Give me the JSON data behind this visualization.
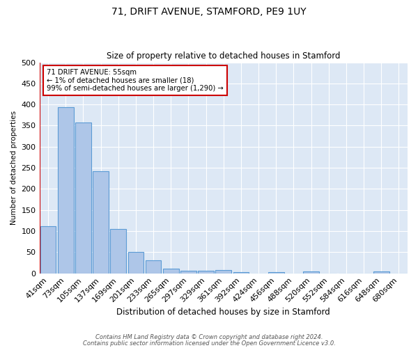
{
  "title1": "71, DRIFT AVENUE, STAMFORD, PE9 1UY",
  "title2": "Size of property relative to detached houses in Stamford",
  "xlabel": "Distribution of detached houses by size in Stamford",
  "ylabel": "Number of detached properties",
  "bar_labels": [
    "41sqm",
    "73sqm",
    "105sqm",
    "137sqm",
    "169sqm",
    "201sqm",
    "233sqm",
    "265sqm",
    "297sqm",
    "329sqm",
    "361sqm",
    "392sqm",
    "424sqm",
    "456sqm",
    "488sqm",
    "520sqm",
    "552sqm",
    "584sqm",
    "616sqm",
    "648sqm",
    "680sqm"
  ],
  "bar_values": [
    112,
    393,
    358,
    242,
    105,
    50,
    30,
    11,
    6,
    6,
    7,
    3,
    0,
    3,
    0,
    4,
    0,
    0,
    0,
    4,
    0
  ],
  "bar_color": "#aec6e8",
  "bar_edge_color": "#5b9bd5",
  "bg_color": "#dde8f5",
  "grid_color": "#ffffff",
  "vline_color": "#cc0000",
  "annotation_text": "71 DRIFT AVENUE: 55sqm\n← 1% of detached houses are smaller (18)\n99% of semi-detached houses are larger (1,290) →",
  "annotation_box_color": "#ffffff",
  "annotation_box_edge": "#cc0000",
  "ylim": [
    0,
    500
  ],
  "yticks": [
    0,
    50,
    100,
    150,
    200,
    250,
    300,
    350,
    400,
    450,
    500
  ],
  "footnote1": "Contains HM Land Registry data © Crown copyright and database right 2024.",
  "footnote2": "Contains public sector information licensed under the Open Government Licence v3.0."
}
